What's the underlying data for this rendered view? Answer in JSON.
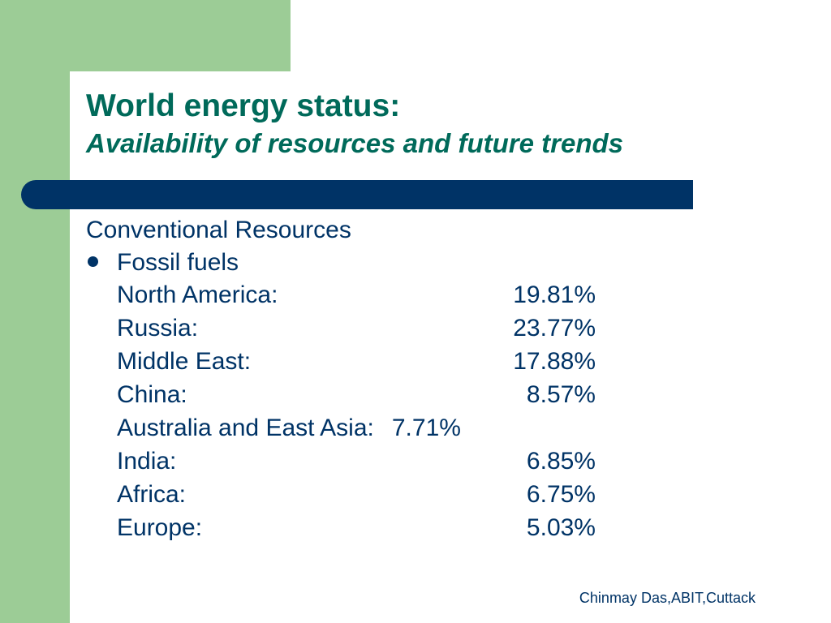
{
  "slide": {
    "title": "World energy status:",
    "subtitle": "Availability of resources and future trends",
    "section_heading": "Conventional Resources",
    "bullet_label": "Fossil fuels",
    "regions": [
      {
        "name": "North America:",
        "share": "19.81%"
      },
      {
        "name": "Russia:",
        "share": "23.77%"
      },
      {
        "name": "Middle East:",
        "share": "17.88%"
      },
      {
        "name": "China:",
        "share": "8.57%"
      },
      {
        "name": "Australia and East Asia:",
        "share": "7.71%"
      },
      {
        "name": "India:",
        "share": "6.85%"
      },
      {
        "name": "Africa:",
        "share": "6.75%"
      },
      {
        "name": "Europe:",
        "share": "5.03%"
      }
    ],
    "footer": "Chinmay Das,ABIT,Cuttack"
  },
  "colors": {
    "accent_green": "#9ccc96",
    "title_green": "#006a5a",
    "navy": "#003366"
  }
}
